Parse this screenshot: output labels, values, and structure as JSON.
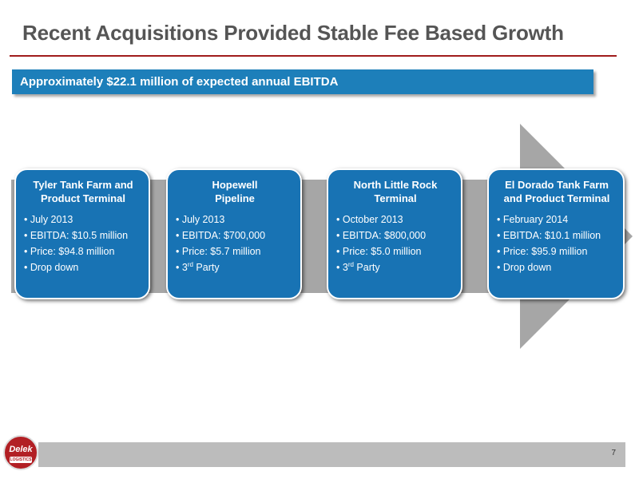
{
  "slide": {
    "title": "Recent Acquisitions Provided Stable Fee Based Growth",
    "banner": "Approximately $22.1 million of expected annual EBITDA",
    "page_number": "7"
  },
  "logo": {
    "name": "Delek",
    "sub": "LOGISTICS"
  },
  "acquisitions": [
    {
      "title_line1": "Tyler Tank Farm and",
      "title_line2": "Product Terminal",
      "date": "July 2013",
      "ebitda": "EBITDA: $10.5 million",
      "price": "Price: $94.8 million",
      "type": "Drop down"
    },
    {
      "title_line1": "Hopewell",
      "title_line2": "Pipeline",
      "date": "July 2013",
      "ebitda": "EBITDA: $700,000",
      "price": "Price: $5.7 million",
      "type_ordinal": "3",
      "type_suffix": "rd",
      "type_rest": " Party"
    },
    {
      "title_line1": "North Little Rock",
      "title_line2": "Terminal",
      "date": "October 2013",
      "ebitda": "EBITDA: $800,000",
      "price": "Price: $5.0 million",
      "type_ordinal": "3",
      "type_suffix": "rd",
      "type_rest": " Party"
    },
    {
      "title_line1": "El Dorado Tank Farm",
      "title_line2": "and Product Terminal",
      "date": "February 2014",
      "ebitda": "EBITDA: $10.1 million",
      "price": "Price: $95.9 million",
      "type": "Drop down"
    }
  ],
  "colors": {
    "box_blue": "#1873b4",
    "banner_blue": "#1d7fba",
    "arrow_gray": "#a6a6a6",
    "title_rule": "#a01c1c"
  }
}
